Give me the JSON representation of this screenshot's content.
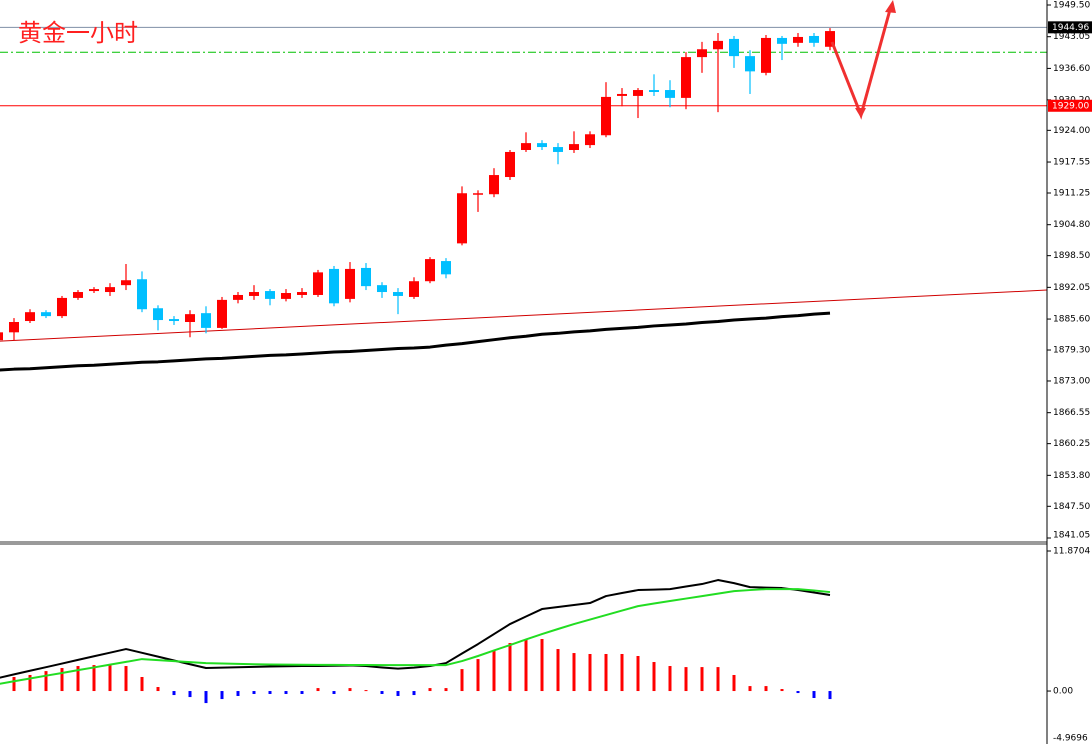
{
  "chart_data": [
    {
      "type": "candlestick",
      "title": "黄金一小时",
      "open": [
        1881.3,
        1882.9,
        1885.2,
        1887.0,
        1886.2,
        1889.9,
        1891.3,
        1891.1,
        1892.5,
        1893.7,
        1887.8,
        1885.6,
        1885.0,
        1886.8,
        1883.8,
        1889.5,
        1890.3,
        1891.3,
        1889.7,
        1890.5,
        1890.5,
        1895.8,
        1889.7,
        1896.0,
        1892.5,
        1891.1,
        1890.1,
        1893.3,
        1897.4,
        1901.0,
        1911.0,
        1911.0,
        1914.5,
        1920.0,
        1921.4,
        1920.6,
        1920.0,
        1921.0,
        1923.0,
        1931.0,
        1931.0,
        1932.2,
        1932.2,
        1930.6,
        1938.9,
        1940.5,
        1942.6,
        1939.1,
        1935.7,
        1942.8,
        1941.8,
        1943.2,
        1941.0
      ],
      "high": [
        1883.3,
        1885.8,
        1887.6,
        1887.4,
        1890.3,
        1891.5,
        1892.1,
        1892.9,
        1896.8,
        1895.3,
        1888.4,
        1886.2,
        1887.4,
        1888.2,
        1890.1,
        1891.1,
        1892.5,
        1891.7,
        1891.7,
        1891.9,
        1895.6,
        1896.4,
        1897.2,
        1897.0,
        1893.1,
        1891.9,
        1894.1,
        1898.2,
        1898.0,
        1912.6,
        1911.8,
        1916.3,
        1920.0,
        1923.6,
        1922.0,
        1921.4,
        1923.8,
        1923.8,
        1933.8,
        1932.6,
        1932.6,
        1935.4,
        1934.2,
        1939.9,
        1942.0,
        1943.8,
        1943.2,
        1940.3,
        1943.4,
        1943.2,
        1943.8,
        1943.8,
        1944.8
      ],
      "low": [
        1880.9,
        1881.3,
        1884.8,
        1885.8,
        1885.8,
        1889.5,
        1890.9,
        1890.3,
        1891.5,
        1887.0,
        1883.3,
        1884.4,
        1881.9,
        1882.7,
        1883.6,
        1888.8,
        1889.5,
        1888.4,
        1889.2,
        1889.9,
        1890.1,
        1888.2,
        1889.0,
        1891.5,
        1889.9,
        1886.6,
        1889.7,
        1892.9,
        1893.9,
        1900.6,
        1907.4,
        1910.4,
        1913.9,
        1919.6,
        1920.0,
        1917.1,
        1919.4,
        1920.4,
        1922.6,
        1928.9,
        1926.5,
        1931.0,
        1928.7,
        1928.3,
        1935.7,
        1927.7,
        1936.7,
        1931.4,
        1935.2,
        1938.3,
        1941.0,
        1941.0,
        1940.3
      ],
      "close": [
        1882.9,
        1885.0,
        1887.0,
        1886.2,
        1889.9,
        1891.1,
        1891.7,
        1892.1,
        1893.5,
        1887.6,
        1885.4,
        1885.2,
        1886.6,
        1883.8,
        1889.5,
        1890.5,
        1891.1,
        1889.7,
        1890.9,
        1891.1,
        1895.1,
        1888.8,
        1895.8,
        1892.3,
        1891.1,
        1890.3,
        1893.3,
        1897.8,
        1894.7,
        1911.2,
        1911.2,
        1914.9,
        1919.6,
        1921.4,
        1920.6,
        1919.6,
        1921.2,
        1923.2,
        1930.8,
        1931.4,
        1932.2,
        1931.8,
        1930.6,
        1938.9,
        1940.5,
        1942.2,
        1939.1,
        1936.0,
        1942.8,
        1941.6,
        1943.0,
        1941.8,
        1944.2
      ],
      "up_color": "#ff0000",
      "down_color": "#00bfff",
      "series": [
        {
          "color": "#000000",
          "values": [
            1875.2,
            1875.4,
            1875.5,
            1875.7,
            1875.9,
            1876.1,
            1876.2,
            1876.4,
            1876.6,
            1876.8,
            1876.9,
            1877.1,
            1877.3,
            1877.5,
            1877.6,
            1877.8,
            1878.0,
            1878.2,
            1878.3,
            1878.5,
            1878.7,
            1878.9,
            1879.0,
            1879.2,
            1879.4,
            1879.6,
            1879.7,
            1879.9,
            1880.3,
            1880.6,
            1881.0,
            1881.4,
            1881.8,
            1882.1,
            1882.5,
            1882.7,
            1883.0,
            1883.2,
            1883.5,
            1883.7,
            1883.9,
            1884.2,
            1884.4,
            1884.6,
            1884.9,
            1885.1,
            1885.4,
            1885.6,
            1885.8,
            1886.1,
            1886.3,
            1886.6,
            1886.8
          ]
        }
      ],
      "trendline": {
        "color": "#d00000",
        "values": [
          1881.1,
          1891.5
        ]
      },
      "price_lines": [
        {
          "price": 1944.96,
          "color": "#7f8fa6",
          "box": "#000000"
        },
        {
          "price": {
            "value": 1929,
            "label": "1929.00"
          },
          "color": "#ff0000",
          "box": "#ff0000"
        },
        {
          "price": 1939.9,
          "color": "#00c000",
          "style": "dash-dot"
        }
      ],
      "ylim": [
        1840.44,
        1950.52
      ],
      "yticks": [
        {
          "value": 1949.5,
          "label": "1949.50"
        },
        1943.05,
        {
          "value": 1936.6,
          "label": "1936.60"
        },
        {
          "value": 1930.2,
          "label": "1930.20"
        },
        {
          "value": 1924,
          "label": "1924.00"
        },
        1917.55,
        1911.25,
        {
          "value": 1904.8,
          "label": "1904.80"
        },
        {
          "value": 1898.5,
          "label": "1898.50"
        },
        1892.05,
        {
          "value": 1885.6,
          "label": "1885.60"
        },
        {
          "value": 1879.3,
          "label": "1879.30"
        },
        {
          "value": 1873,
          "label": "1873.00"
        },
        1866.55,
        1860.25,
        {
          "value": 1853.8,
          "label": "1853.80"
        },
        {
          "value": 1847.5,
          "label": "1847.50"
        },
        1841.05
      ]
    },
    {
      "type": "macd",
      "histogram": {
        "up_color": "#ff0000",
        "down_color": "#0000ff",
        "values": [
          1.19,
          1.19,
          1.36,
          1.69,
          1.95,
          2.12,
          2.2,
          2.29,
          2.12,
          1.19,
          0.34,
          -0.34,
          -0.51,
          -1.02,
          -0.68,
          -0.42,
          -0.25,
          -0.25,
          -0.25,
          -0.25,
          0.25,
          -0.25,
          0.25,
          0.08,
          -0.25,
          -0.42,
          -0.34,
          0.25,
          0.25,
          1.86,
          2.71,
          3.47,
          4.07,
          4.41,
          4.41,
          3.56,
          3.22,
          3.14,
          3.14,
          3.14,
          2.97,
          2.46,
          2.12,
          2.03,
          2.03,
          2.03,
          1.36,
          0.42,
          0.42,
          0.17,
          -0.17,
          -0.59,
          -0.68
        ]
      },
      "series": [
        {
          "color": "#000000",
          "values": [
            1.1,
            1.41,
            1.72,
            2.02,
            2.33,
            2.64,
            2.95,
            3.25,
            3.56,
            3.24,
            2.92,
            2.59,
            2.27,
            1.95,
            1.98,
            2.02,
            2.05,
            2.08,
            2.1,
            2.12,
            2.12,
            2.14,
            2.17,
            2.12,
            2.0,
            1.9,
            1.98,
            2.12,
            2.37,
            3.18,
            3.98,
            4.83,
            5.68,
            6.32,
            6.95,
            7.12,
            7.29,
            7.46,
            8.05,
            8.31,
            8.56,
            8.6,
            8.64,
            8.86,
            9.07,
            9.41,
            9.15,
            8.81,
            8.77,
            8.73,
            8.56,
            8.35,
            8.14
          ]
        },
        {
          "color": "#22dd22",
          "values": [
            0.59,
            0.83,
            1.06,
            1.3,
            1.53,
            1.77,
            2.0,
            2.24,
            2.47,
            2.71,
            2.62,
            2.54,
            2.45,
            2.37,
            2.33,
            2.3,
            2.27,
            2.25,
            2.24,
            2.23,
            2.22,
            2.22,
            2.21,
            2.21,
            2.2,
            2.2,
            2.2,
            2.2,
            2.2,
            2.54,
            2.97,
            3.44,
            3.9,
            4.37,
            4.83,
            5.26,
            5.68,
            6.06,
            6.44,
            6.82,
            7.2,
            7.42,
            7.63,
            7.84,
            8.05,
            8.26,
            8.47,
            8.56,
            8.64,
            8.64,
            8.64,
            8.52,
            8.39
          ]
        }
      ],
      "ylim": [
        -4.49,
        12.38
      ],
      "yticks": [
        11.8704,
        {
          "value": 0,
          "label": "0.00"
        },
        -4.9696
      ]
    }
  ]
}
